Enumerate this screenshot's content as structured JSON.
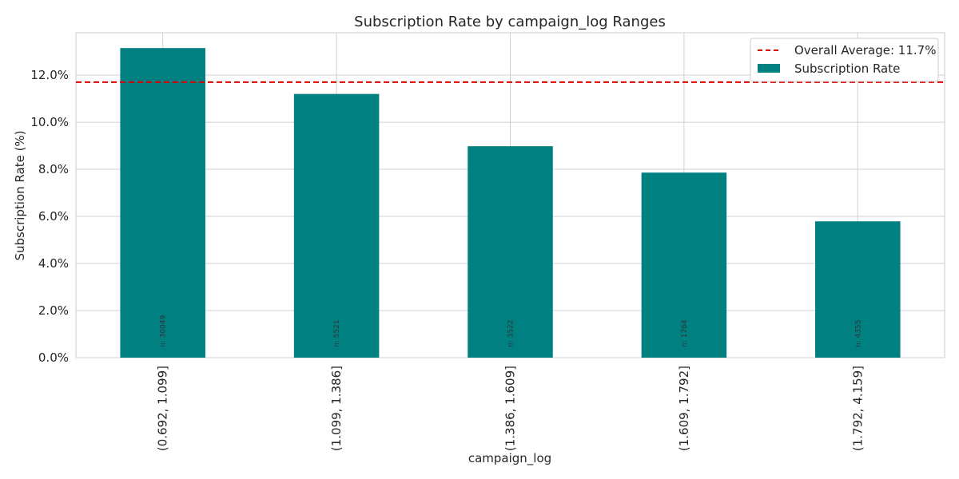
{
  "chart_data": {
    "type": "bar",
    "title": "Subscription Rate by campaign_log Ranges",
    "xlabel": "campaign_log",
    "ylabel": "Subscription Rate (%)",
    "categories": [
      "(0.692, 1.099]",
      "(1.099, 1.386]",
      "(1.386, 1.609]",
      "(1.609, 1.792]",
      "(1.792, 4.159]"
    ],
    "series": [
      {
        "name": "Subscription Rate",
        "values": [
          13.15,
          11.2,
          8.98,
          7.86,
          5.79
        ],
        "color": "#008080"
      }
    ],
    "bar_labels": [
      "n: 30049",
      "n: 5521",
      "n: 3522",
      "n: 1764",
      "n: 4355"
    ],
    "reference_line": {
      "label": "Overall Average: 11.7%",
      "value": 11.7,
      "color": "#dd0000",
      "style": "dashed"
    },
    "ylim": [
      0,
      13.8
    ],
    "yticks": [
      0,
      2,
      4,
      6,
      8,
      10,
      12
    ],
    "ytick_labels": [
      "0.0%",
      "2.0%",
      "4.0%",
      "6.0%",
      "8.0%",
      "10.0%",
      "12.0%"
    ],
    "grid": true,
    "legend_position": "top-right"
  }
}
